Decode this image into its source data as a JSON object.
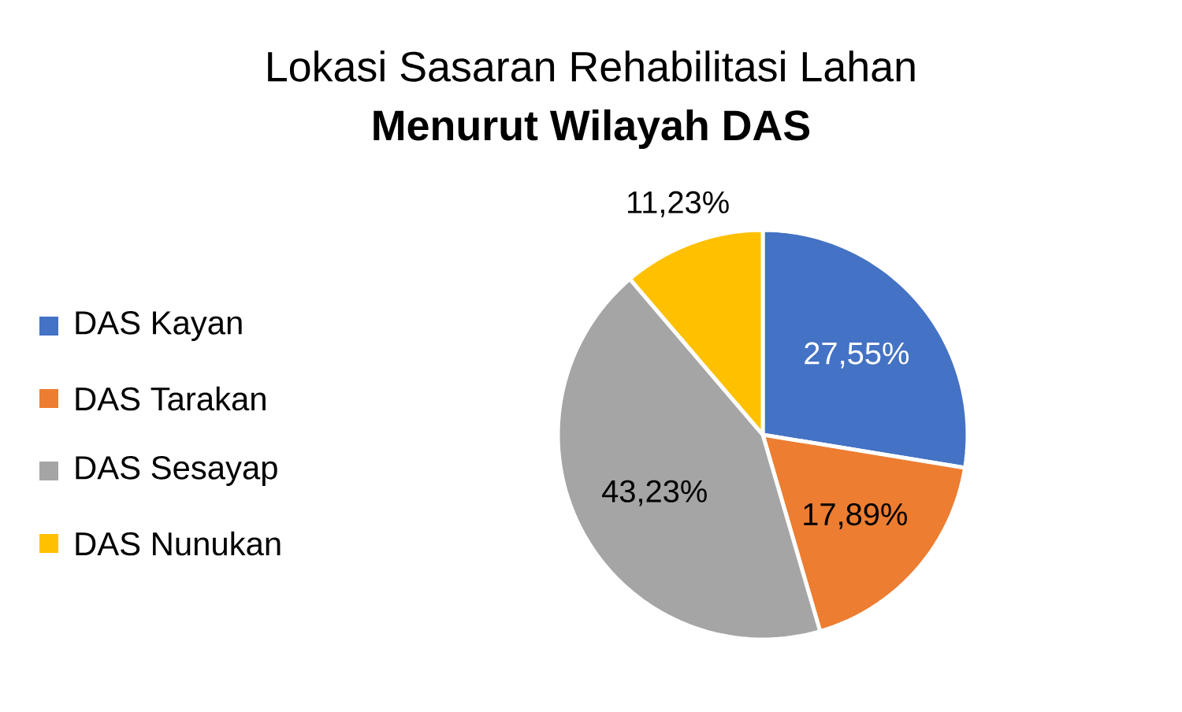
{
  "chart_data": {
    "type": "pie",
    "title": "Lokasi Sasaran Rehabilitasi Lahan",
    "subtitle": "**Menurut Wilayah DAS**",
    "categories": [
      "DAS Kayan",
      "DAS Tarakan",
      "DAS Sesayap",
      "DAS Nunukan"
    ],
    "values": [
      27.55,
      17.89,
      43.23,
      11.23
    ],
    "colors": [
      "#4472c4",
      "#ed7d31",
      "#a5a5a5",
      "#ffc000"
    ],
    "value_labels": [
      "27,55%",
      "17,89%",
      "43,23%",
      "11,23%"
    ],
    "legend": "left"
  }
}
